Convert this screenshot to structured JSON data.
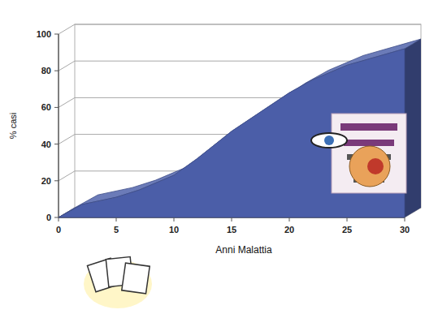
{
  "chart_data": {
    "type": "area",
    "x_label": "Anni Malattia",
    "y_label": "% casi",
    "x": [
      0,
      2,
      5,
      7,
      10,
      12,
      15,
      20,
      22,
      25,
      30
    ],
    "values": [
      0,
      7,
      11,
      15,
      23,
      32,
      47,
      68,
      75,
      83,
      92
    ],
    "color": "#4b5ea8",
    "xlim": [
      0,
      30
    ],
    "xticks": [
      0,
      5,
      10,
      15,
      20,
      25,
      30
    ],
    "ylim": [
      0,
      100
    ],
    "yticks": [
      0,
      20,
      40,
      60,
      80,
      100
    ],
    "grid": true
  }
}
